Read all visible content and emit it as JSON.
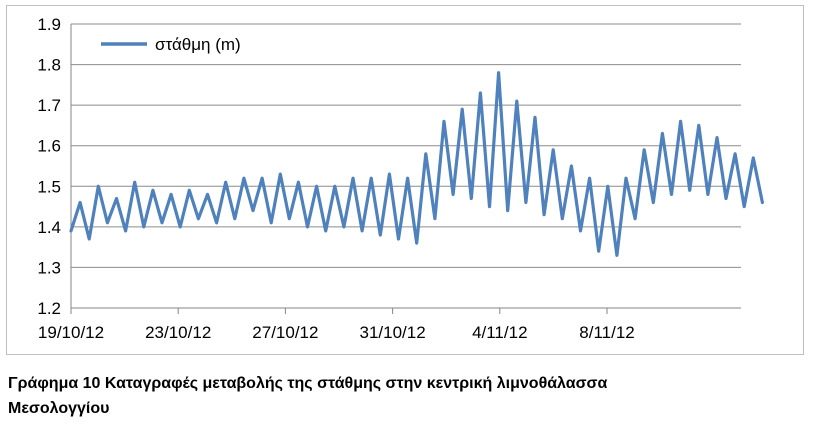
{
  "chart_data": {
    "type": "line",
    "title": "",
    "xlabel": "",
    "ylabel": "",
    "ylim": [
      1.2,
      1.9
    ],
    "yticks": [
      1.2,
      1.3,
      1.4,
      1.5,
      1.6,
      1.7,
      1.8,
      1.9
    ],
    "ytick_labels": [
      "1.2",
      "1.3",
      "1.4",
      "1.5",
      "1.6",
      "1.7",
      "1.8",
      "1.9"
    ],
    "xlim": [
      "2012-10-19",
      "2012-11-13"
    ],
    "xticks": [
      "2012-10-19",
      "2012-10-23",
      "2012-10-27",
      "2012-10-31",
      "2012-11-04",
      "2012-11-08"
    ],
    "xtick_labels": [
      "19/10/12",
      "23/10/12",
      "27/10/12",
      "31/10/12",
      "4/11/12",
      "8/11/12"
    ],
    "grid": "horizontal",
    "legend": "top-left",
    "series": [
      {
        "name": "στάθμη (m)",
        "color": "#4f81bd",
        "points": [
          [
            "2012-10-19",
            1.39
          ],
          [
            "2012-10-19",
            1.46
          ],
          [
            "2012-10-20",
            1.37
          ],
          [
            "2012-10-20",
            1.5
          ],
          [
            "2012-10-20",
            1.41
          ],
          [
            "2012-10-21",
            1.47
          ],
          [
            "2012-10-21",
            1.39
          ],
          [
            "2012-10-21",
            1.51
          ],
          [
            "2012-10-22",
            1.4
          ],
          [
            "2012-10-22",
            1.49
          ],
          [
            "2012-10-22",
            1.41
          ],
          [
            "2012-10-23",
            1.48
          ],
          [
            "2012-10-23",
            1.4
          ],
          [
            "2012-10-23",
            1.49
          ],
          [
            "2012-10-24",
            1.42
          ],
          [
            "2012-10-24",
            1.48
          ],
          [
            "2012-10-24",
            1.41
          ],
          [
            "2012-10-25",
            1.51
          ],
          [
            "2012-10-25",
            1.42
          ],
          [
            "2012-10-25",
            1.52
          ],
          [
            "2012-10-26",
            1.44
          ],
          [
            "2012-10-26",
            1.52
          ],
          [
            "2012-10-26",
            1.41
          ],
          [
            "2012-10-27",
            1.53
          ],
          [
            "2012-10-27",
            1.42
          ],
          [
            "2012-10-27",
            1.51
          ],
          [
            "2012-10-28",
            1.4
          ],
          [
            "2012-10-28",
            1.5
          ],
          [
            "2012-10-28",
            1.39
          ],
          [
            "2012-10-29",
            1.5
          ],
          [
            "2012-10-29",
            1.4
          ],
          [
            "2012-10-29",
            1.52
          ],
          [
            "2012-10-30",
            1.39
          ],
          [
            "2012-10-30",
            1.52
          ],
          [
            "2012-10-30",
            1.38
          ],
          [
            "2012-10-31",
            1.53
          ],
          [
            "2012-10-31",
            1.37
          ],
          [
            "2012-10-31",
            1.52
          ],
          [
            "2012-11-01",
            1.36
          ],
          [
            "2012-11-01",
            1.58
          ],
          [
            "2012-11-01",
            1.42
          ],
          [
            "2012-11-02",
            1.66
          ],
          [
            "2012-11-02",
            1.48
          ],
          [
            "2012-11-02",
            1.69
          ],
          [
            "2012-11-03",
            1.47
          ],
          [
            "2012-11-03",
            1.73
          ],
          [
            "2012-11-03",
            1.45
          ],
          [
            "2012-11-04",
            1.78
          ],
          [
            "2012-11-04",
            1.44
          ],
          [
            "2012-11-04",
            1.71
          ],
          [
            "2012-11-05",
            1.46
          ],
          [
            "2012-11-05",
            1.67
          ],
          [
            "2012-11-05",
            1.43
          ],
          [
            "2012-11-06",
            1.59
          ],
          [
            "2012-11-06",
            1.42
          ],
          [
            "2012-11-06",
            1.55
          ],
          [
            "2012-11-07",
            1.39
          ],
          [
            "2012-11-07",
            1.52
          ],
          [
            "2012-11-07",
            1.34
          ],
          [
            "2012-11-08",
            1.5
          ],
          [
            "2012-11-08",
            1.33
          ],
          [
            "2012-11-08",
            1.52
          ],
          [
            "2012-11-09",
            1.42
          ],
          [
            "2012-11-09",
            1.59
          ],
          [
            "2012-11-09",
            1.46
          ],
          [
            "2012-11-10",
            1.63
          ],
          [
            "2012-11-10",
            1.48
          ],
          [
            "2012-11-10",
            1.66
          ],
          [
            "2012-11-11",
            1.49
          ],
          [
            "2012-11-11",
            1.65
          ],
          [
            "2012-11-11",
            1.48
          ],
          [
            "2012-11-12",
            1.62
          ],
          [
            "2012-11-12",
            1.47
          ],
          [
            "2012-11-12",
            1.58
          ],
          [
            "2012-11-13",
            1.45
          ],
          [
            "2012-11-13",
            1.57
          ],
          [
            "2012-11-13",
            1.46
          ]
        ]
      }
    ]
  },
  "caption": {
    "line1": "Γράφημα 10 Καταγραφές μεταβολής της στάθμης στην κεντρική λιμνοθάλασσα",
    "line2": "Μεσολογγίου"
  }
}
